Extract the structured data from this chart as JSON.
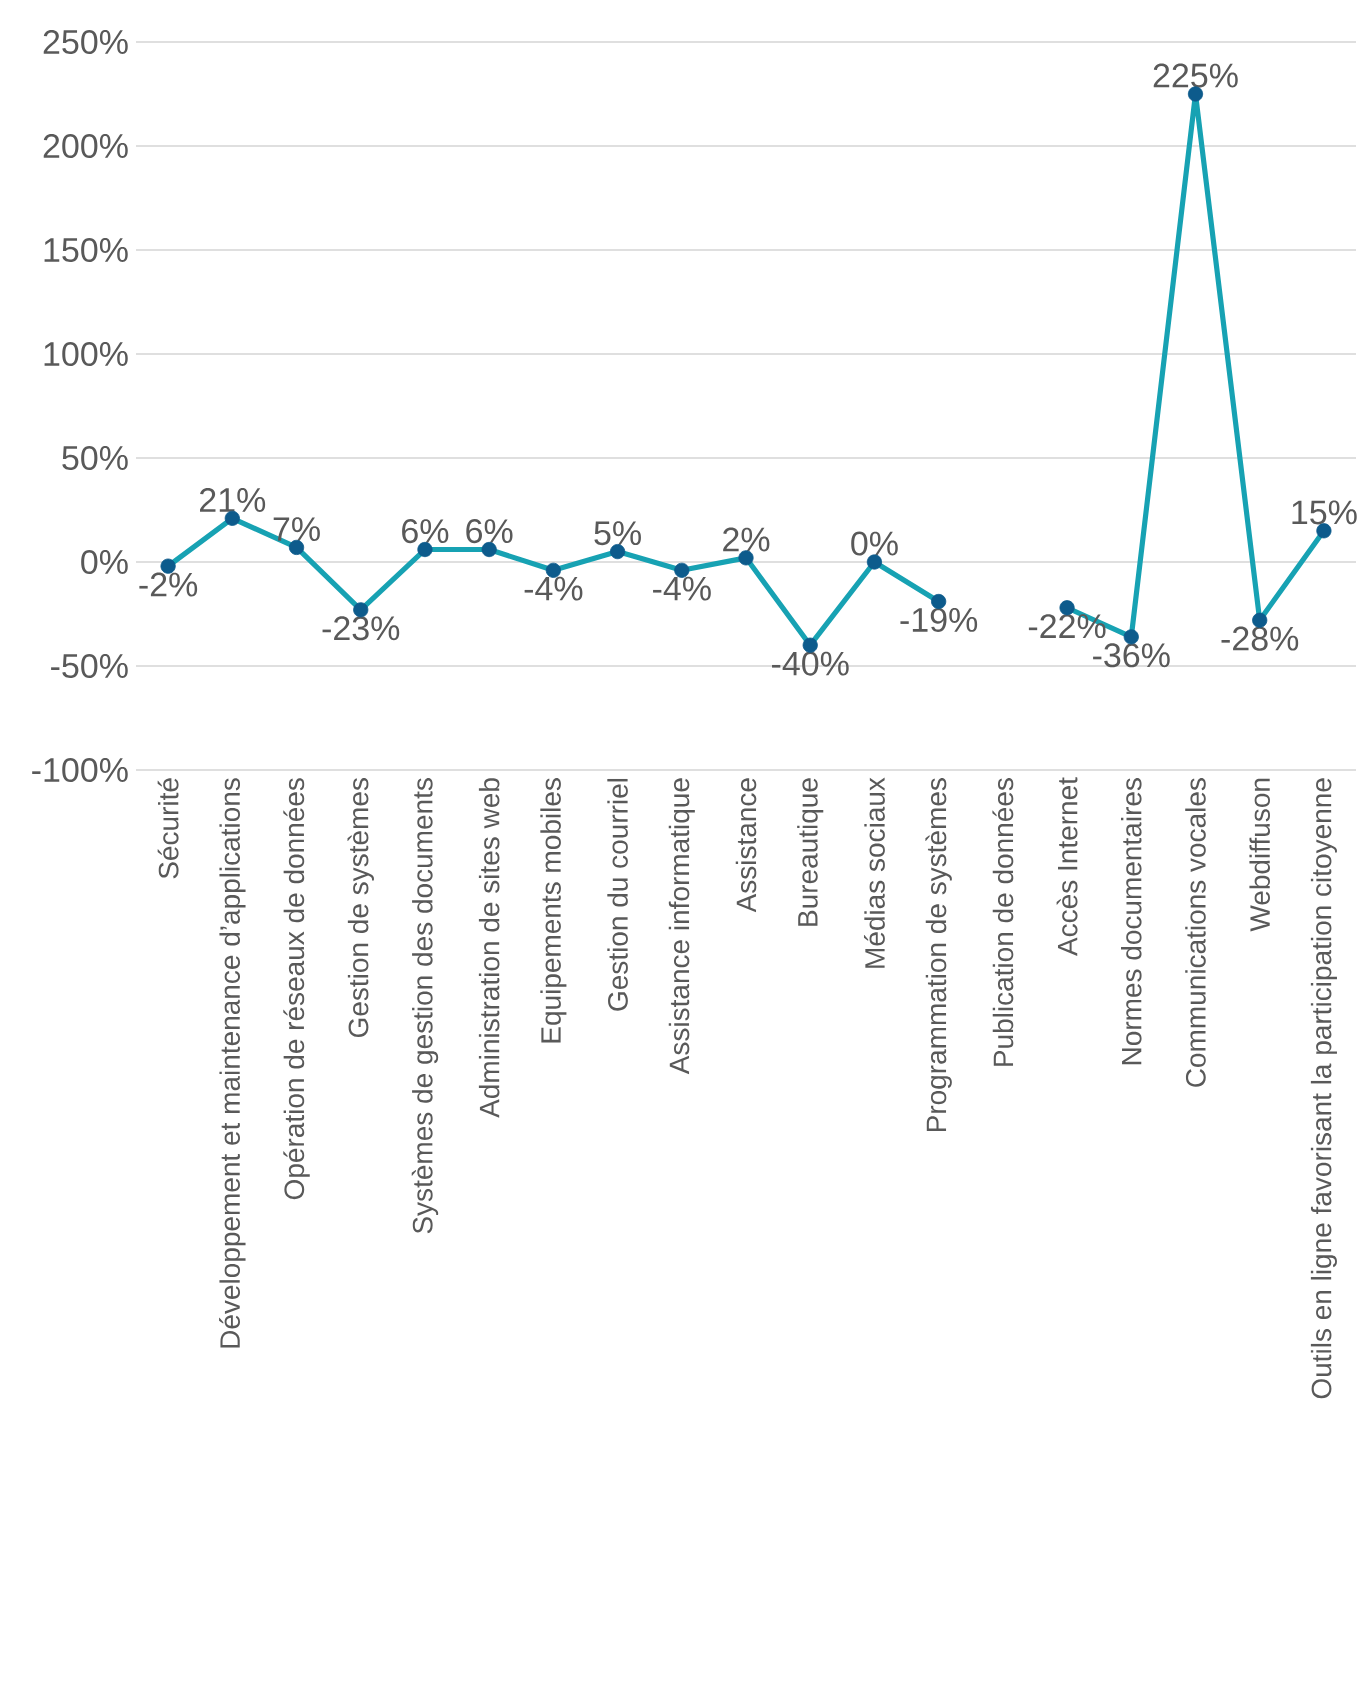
{
  "chart_data": {
    "type": "line",
    "categories": [
      "Sécurité",
      "Développement et maintenance d’applications",
      "Opération de réseaux de données",
      "Gestion de systèmes",
      "Systèmes de gestion des documents",
      "Administration de sites web",
      "Equipements mobiles",
      "Gestion du courriel",
      "Assistance informatique",
      "Assistance",
      "Bureautique",
      "Médias sociaux",
      "Programmation de systèmes",
      "Publication de données",
      "Accès Internet",
      "Normes documentaires",
      "Communications vocales",
      "Webdiffuson",
      "Outils en ligne favorisant la participation citoyenne"
    ],
    "series": [
      {
        "color": "#17a2b3",
        "colors": [
          "#0d5b8c",
          "#0d5b8c",
          "#0d5b8c",
          "#0d5b8c",
          "#0d5b8c",
          "#0d5b8c",
          "#0d5b8c",
          "#0d5b8c",
          "#0d5b8c",
          "#0d5b8c",
          "#0d5b8c",
          "#0d5b8c",
          "#0d5b8c",
          "#0d5b8c",
          "#0d5b8c",
          "#0d5b8c",
          "#0d5b8c",
          "#0d5b8c",
          "#0d5b8c"
        ],
        "values": [
          -2,
          21,
          7,
          -23,
          6,
          6,
          -4,
          5,
          -4,
          2,
          -40,
          0,
          -19,
          null,
          -22,
          -36,
          225,
          -28,
          15
        ],
        "value_labels": [
          "-2%",
          "21%",
          "7%",
          "-23%",
          "6%",
          "6%",
          "-4%",
          "5%",
          "-4%",
          "2%",
          "-40%",
          "0%",
          "-19%",
          null,
          "-22%",
          "-36%",
          "225%",
          "-28%",
          "15%"
        ]
      }
    ],
    "ylim": [
      -100,
      250
    ],
    "yticks": [
      {
        "value": -100,
        "label": "-100%"
      },
      {
        "value": -50,
        "label": "-50%"
      },
      {
        "value": 0,
        "label": "0%"
      },
      {
        "value": 50,
        "label": "50%"
      },
      {
        "value": 100,
        "label": "100%"
      },
      {
        "value": 150,
        "label": "150%"
      },
      {
        "value": 200,
        "label": "200%"
      },
      {
        "value": 250,
        "label": "250%"
      }
    ],
    "grid": "y",
    "marker": "circle",
    "line_style": "solid"
  }
}
